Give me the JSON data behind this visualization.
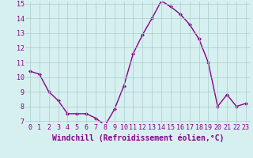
{
  "x": [
    0,
    1,
    2,
    3,
    4,
    5,
    6,
    7,
    8,
    9,
    10,
    11,
    12,
    13,
    14,
    15,
    16,
    17,
    18,
    19,
    20,
    21,
    22,
    23
  ],
  "y": [
    10.4,
    10.2,
    9.0,
    8.4,
    7.5,
    7.5,
    7.5,
    7.2,
    6.7,
    7.8,
    9.4,
    11.6,
    12.9,
    14.0,
    15.2,
    14.8,
    14.3,
    13.6,
    12.6,
    11.0,
    8.0,
    8.8,
    8.0,
    8.2
  ],
  "line_color": "#8B008B",
  "marker": "D",
  "marker_size": 2.0,
  "bg_color": "#d6f0f0",
  "grid_color": "#aacccc",
  "xlabel": "Windchill (Refroidissement éolien,°C)",
  "xlabel_color": "#8B008B",
  "ylim": [
    7,
    15
  ],
  "xlim": [
    -0.5,
    23.5
  ],
  "yticks": [
    7,
    8,
    9,
    10,
    11,
    12,
    13,
    14,
    15
  ],
  "xticks": [
    0,
    1,
    2,
    3,
    4,
    5,
    6,
    7,
    8,
    9,
    10,
    11,
    12,
    13,
    14,
    15,
    16,
    17,
    18,
    19,
    20,
    21,
    22,
    23
  ],
  "tick_label_color": "#8B008B",
  "tick_label_fontsize": 6.0,
  "xlabel_fontsize": 7.0,
  "linewidth": 1.0
}
